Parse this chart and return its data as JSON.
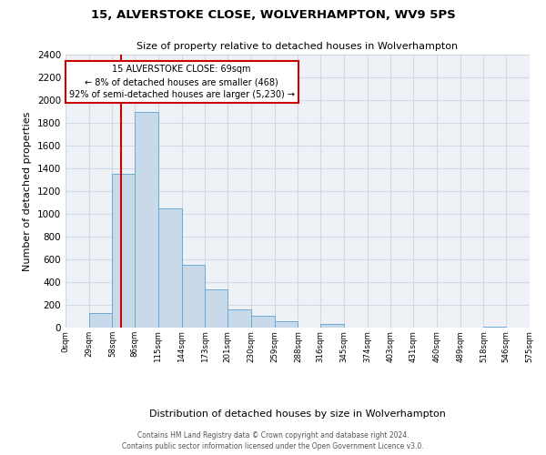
{
  "title": "15, ALVERSTOKE CLOSE, WOLVERHAMPTON, WV9 5PS",
  "subtitle": "Size of property relative to detached houses in Wolverhampton",
  "xlabel": "Distribution of detached houses by size in Wolverhampton",
  "ylabel": "Number of detached properties",
  "bar_color": "#c8daea",
  "bar_edge_color": "#6aaad4",
  "grid_color": "#d0dae4",
  "background_color": "#eef2f7",
  "annotation_box_edge": "#cc0000",
  "red_line_x": 69,
  "annotation_line1": "15 ALVERSTOKE CLOSE: 69sqm",
  "annotation_line2": "← 8% of detached houses are smaller (468)",
  "annotation_line3": "92% of semi-detached houses are larger (5,230) →",
  "bin_edges": [
    0,
    29,
    58,
    86,
    115,
    144,
    173,
    201,
    230,
    259,
    288,
    316,
    345,
    374,
    403,
    431,
    460,
    489,
    518,
    546,
    575
  ],
  "bin_counts": [
    0,
    125,
    1350,
    1900,
    1050,
    550,
    340,
    160,
    105,
    60,
    0,
    30,
    0,
    0,
    0,
    0,
    0,
    0,
    10,
    0
  ],
  "tick_labels": [
    "0sqm",
    "29sqm",
    "58sqm",
    "86sqm",
    "115sqm",
    "144sqm",
    "173sqm",
    "201sqm",
    "230sqm",
    "259sqm",
    "288sqm",
    "316sqm",
    "345sqm",
    "374sqm",
    "403sqm",
    "431sqm",
    "460sqm",
    "489sqm",
    "518sqm",
    "546sqm",
    "575sqm"
  ],
  "ylim": [
    0,
    2400
  ],
  "yticks": [
    0,
    200,
    400,
    600,
    800,
    1000,
    1200,
    1400,
    1600,
    1800,
    2000,
    2200,
    2400
  ],
  "footer_line1": "Contains HM Land Registry data © Crown copyright and database right 2024.",
  "footer_line2": "Contains public sector information licensed under the Open Government Licence v3.0."
}
